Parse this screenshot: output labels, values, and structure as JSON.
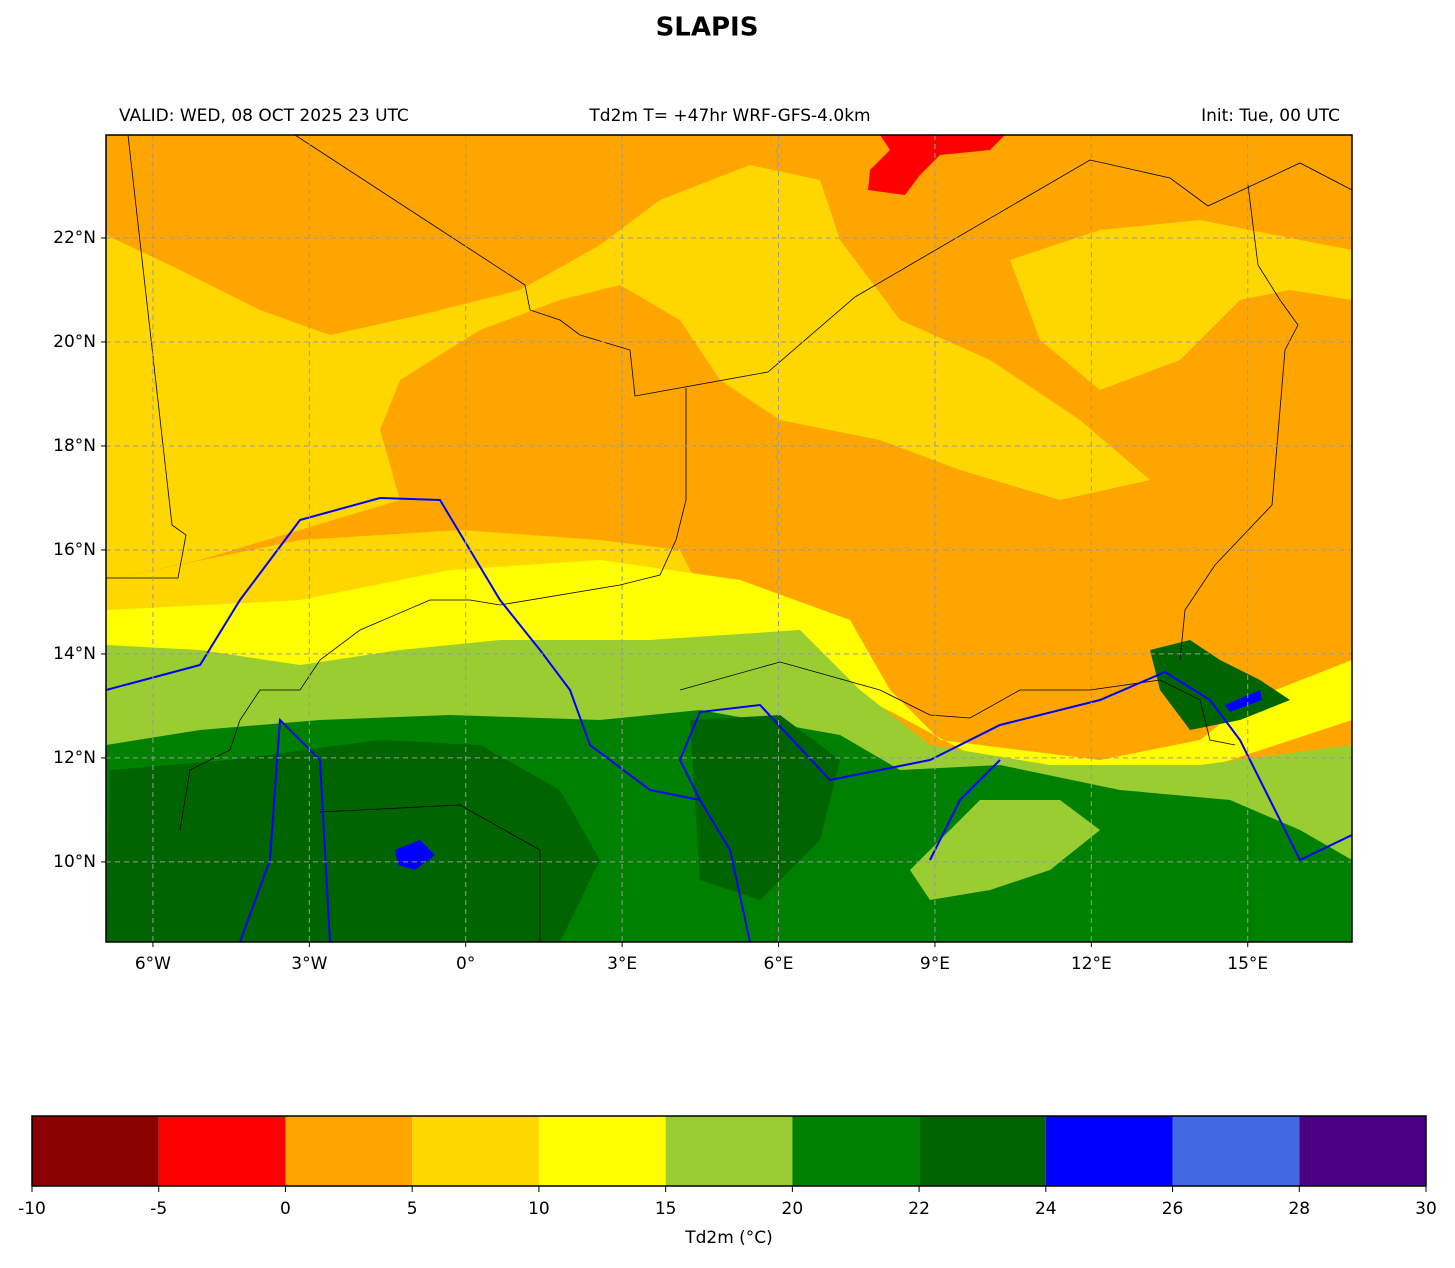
{
  "title": "SLAPIS",
  "header": {
    "left": "VALID: WED, 08 OCT 2025 23 UTC",
    "center": "Td2m T= +47hr WRF-GFS-4.0km",
    "right": "Init: Tue, 00 UTC"
  },
  "map": {
    "xlim": [
      -6.9,
      17
    ],
    "ylim": [
      8.46,
      23.98
    ],
    "grid": true,
    "xticks": [
      {
        "value": -6,
        "label": "6°W"
      },
      {
        "value": -3,
        "label": "3°W"
      },
      {
        "value": 0,
        "label": "0°"
      },
      {
        "value": 3,
        "label": "3°E"
      },
      {
        "value": 6,
        "label": "6°E"
      },
      {
        "value": 9,
        "label": "9°E"
      },
      {
        "value": 12,
        "label": "12°E"
      },
      {
        "value": 15,
        "label": "15°E"
      }
    ],
    "yticks": [
      {
        "value": 10,
        "label": "10°N"
      },
      {
        "value": 12,
        "label": "12°N"
      },
      {
        "value": 14,
        "label": "14°N"
      },
      {
        "value": 16,
        "label": "16°N"
      },
      {
        "value": 18,
        "label": "18°N"
      },
      {
        "value": 20,
        "label": "20°N"
      },
      {
        "value": 22,
        "label": "22°N"
      }
    ]
  },
  "colorbar": {
    "label": "Td2m (°C)",
    "bounds": [
      -10,
      -5,
      0,
      5,
      10,
      15,
      20,
      22,
      24,
      26,
      28,
      30
    ],
    "colors": [
      "#8b0000",
      "#ff0000",
      "#ffa500",
      "#ffd700",
      "#ffff00",
      "#9acd32",
      "#008000",
      "#006400",
      "#0000ff",
      "#4169e1",
      "#4b0082"
    ]
  }
}
